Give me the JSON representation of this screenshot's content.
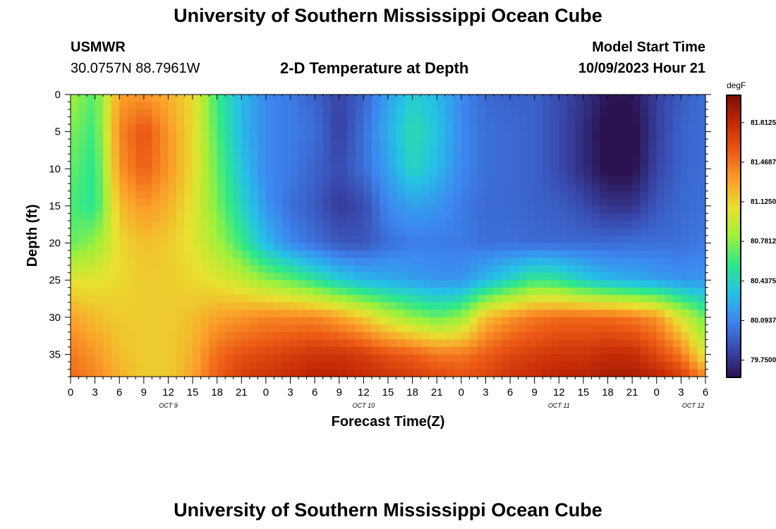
{
  "header": {
    "title": "University of Southern Mississippi Ocean Cube",
    "station": "USMWR",
    "coords": "30.0757N  88.7961W",
    "subtitle": "2-D Temperature at Depth",
    "model_label": "Model Start Time",
    "model_time": "10/09/2023 Hour 21"
  },
  "footer": {
    "title": "University of Southern Mississippi Ocean Cube"
  },
  "colorbar": {
    "unit": "degF",
    "labels": [
      "81.8125",
      "81.4687",
      "81.1250",
      "80.7812",
      "80.4375",
      "80.0937",
      "79.7500"
    ],
    "values": [
      81.8125,
      81.46875,
      81.125,
      80.78125,
      80.4375,
      80.09375,
      79.75
    ],
    "range": [
      79.6,
      82.05
    ],
    "colors": [
      "#2b1250",
      "#3949ad",
      "#3d86f0",
      "#25c2e6",
      "#2ee88a",
      "#9ff03a",
      "#e8e130",
      "#fb9f2a",
      "#ec5a15",
      "#c42a06",
      "#7a0d04"
    ]
  },
  "chart_data": {
    "type": "heatmap",
    "title": "2-D Temperature at Depth",
    "xlabel": "Forecast Time(Z)",
    "ylabel": "Depth (ft)",
    "x_range_hours": [
      0,
      78
    ],
    "x_tick_labels": [
      "0",
      "3",
      "6",
      "9",
      "12",
      "15",
      "18",
      "21",
      "0",
      "3",
      "6",
      "9",
      "12",
      "15",
      "18",
      "21",
      "0",
      "3",
      "6",
      "9",
      "12",
      "15",
      "18",
      "21",
      "0",
      "3",
      "6"
    ],
    "day_labels": [
      {
        "label": "OCT 9",
        "hour": 12
      },
      {
        "label": "OCT 10",
        "hour": 36
      },
      {
        "label": "OCT 11",
        "hour": 60
      },
      {
        "label": "OCT 12",
        "hour": 76.5
      }
    ],
    "ylim": [
      0,
      38
    ],
    "y_ticks": [
      0,
      5,
      10,
      15,
      20,
      25,
      30,
      35
    ],
    "color_unit": "degF",
    "z_range": [
      79.75,
      81.8125
    ],
    "depths_ft": [
      0,
      5,
      10,
      15,
      20,
      25,
      30,
      35,
      38
    ],
    "hours": [
      0,
      3,
      6,
      9,
      12,
      15,
      18,
      21,
      24,
      27,
      30,
      33,
      36,
      39,
      42,
      45,
      48,
      51,
      54,
      57,
      60,
      63,
      66,
      69,
      72,
      75,
      78
    ],
    "values_degF": [
      [
        80.85,
        80.65,
        81.3,
        81.35,
        81.25,
        81.1,
        80.6,
        80.3,
        80.1,
        80.05,
        79.95,
        79.82,
        79.95,
        80.2,
        80.4,
        80.3,
        80.1,
        79.98,
        79.95,
        79.95,
        79.85,
        79.75,
        79.62,
        79.62,
        79.8,
        79.92,
        80.0
      ],
      [
        80.75,
        80.6,
        81.4,
        81.6,
        81.35,
        81.1,
        80.65,
        80.3,
        80.1,
        80.05,
        80.0,
        79.8,
        80.0,
        80.25,
        80.5,
        80.35,
        80.1,
        80.0,
        79.98,
        79.95,
        79.85,
        79.72,
        79.55,
        79.55,
        79.8,
        79.95,
        80.0
      ],
      [
        80.7,
        80.55,
        81.35,
        81.55,
        81.35,
        81.1,
        80.7,
        80.35,
        80.1,
        80.05,
        79.95,
        79.85,
        80.0,
        80.2,
        80.45,
        80.3,
        80.1,
        80.0,
        79.98,
        79.95,
        79.85,
        79.72,
        79.58,
        79.58,
        79.82,
        79.95,
        80.0
      ],
      [
        80.65,
        80.55,
        81.2,
        81.35,
        81.25,
        81.05,
        80.75,
        80.45,
        80.15,
        80.0,
        79.92,
        79.78,
        79.85,
        80.1,
        80.2,
        80.15,
        80.05,
        79.98,
        79.98,
        79.95,
        79.92,
        79.85,
        79.75,
        79.75,
        79.9,
        79.98,
        80.0
      ],
      [
        80.7,
        80.8,
        81.1,
        81.2,
        81.15,
        81.05,
        80.85,
        80.6,
        80.3,
        80.1,
        80.0,
        79.9,
        79.9,
        80.0,
        80.05,
        80.05,
        80.05,
        80.0,
        80.0,
        79.98,
        79.98,
        79.98,
        79.98,
        80.0,
        80.0,
        80.0,
        80.05
      ],
      [
        81.05,
        81.05,
        81.1,
        81.15,
        81.15,
        81.1,
        81.05,
        80.95,
        80.8,
        80.7,
        80.55,
        80.4,
        80.3,
        80.25,
        80.2,
        80.15,
        80.15,
        80.3,
        80.45,
        80.6,
        80.55,
        80.4,
        80.3,
        80.25,
        80.2,
        80.15,
        80.15
      ],
      [
        81.3,
        81.2,
        81.15,
        81.15,
        81.15,
        81.2,
        81.3,
        81.35,
        81.4,
        81.4,
        81.4,
        81.3,
        81.15,
        80.95,
        80.8,
        80.7,
        80.8,
        81.2,
        81.35,
        81.45,
        81.5,
        81.5,
        81.5,
        81.45,
        81.35,
        81.0,
        80.7
      ],
      [
        81.45,
        81.35,
        81.2,
        81.15,
        81.15,
        81.25,
        81.5,
        81.6,
        81.65,
        81.7,
        81.75,
        81.75,
        81.7,
        81.6,
        81.55,
        81.45,
        81.45,
        81.55,
        81.65,
        81.7,
        81.75,
        81.75,
        81.8,
        81.8,
        81.65,
        81.45,
        81.0
      ],
      [
        81.5,
        81.4,
        81.25,
        81.15,
        81.15,
        81.3,
        81.55,
        81.7,
        81.75,
        81.8,
        81.85,
        81.85,
        81.8,
        81.75,
        81.7,
        81.65,
        81.6,
        81.65,
        81.75,
        81.8,
        81.85,
        81.85,
        81.9,
        81.9,
        81.85,
        81.7,
        81.4
      ]
    ]
  }
}
